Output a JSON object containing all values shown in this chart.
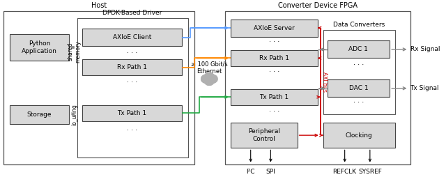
{
  "figsize": [
    6.4,
    2.54
  ],
  "dpi": 100,
  "bg_color": "#ffffff",
  "box_facecolor": "#d8d8d8",
  "box_edgecolor": "#444444",
  "title_host": "Host",
  "title_fpga": "Converter Device FPGA",
  "title_dpdk": "DPDK-Based Driver",
  "title_dc": "Data Converters",
  "label_python": "Python\nApplication",
  "label_storage": "Storage",
  "label_axioeclient": "AXIoE Client",
  "label_rxpath1_left": "Rx Path 1",
  "label_txpath1_left": "Tx Path 1",
  "label_axioeserver": "AXIoE Server",
  "label_rxpath1_right": "Rx Path 1",
  "label_txpath1_right": "Tx Path 1",
  "label_peripheral": "Peripheral\nControl",
  "label_adc": "ADC 1",
  "label_dac": "DAC 1",
  "label_clocking": "Clocking",
  "label_ethernet": "≥ 100 Gbit/s\nEthernet",
  "label_shared": "shared\nmemory",
  "label_io_uring": "io_uring",
  "label_axi_bus": "AXI bus",
  "label_rxsignal": "Rx Signal",
  "label_txsignal": "Tx Signal",
  "label_i2c": "I²C",
  "label_spi": "SPI",
  "label_refclk": "REFCLK",
  "label_sysref": "SYSREF",
  "color_blue": "#5599ff",
  "color_orange": "#ff8800",
  "color_green": "#22aa44",
  "color_red": "#cc0000",
  "color_gray_arrow": "#888888",
  "color_gray_eth": "#aaaaaa"
}
